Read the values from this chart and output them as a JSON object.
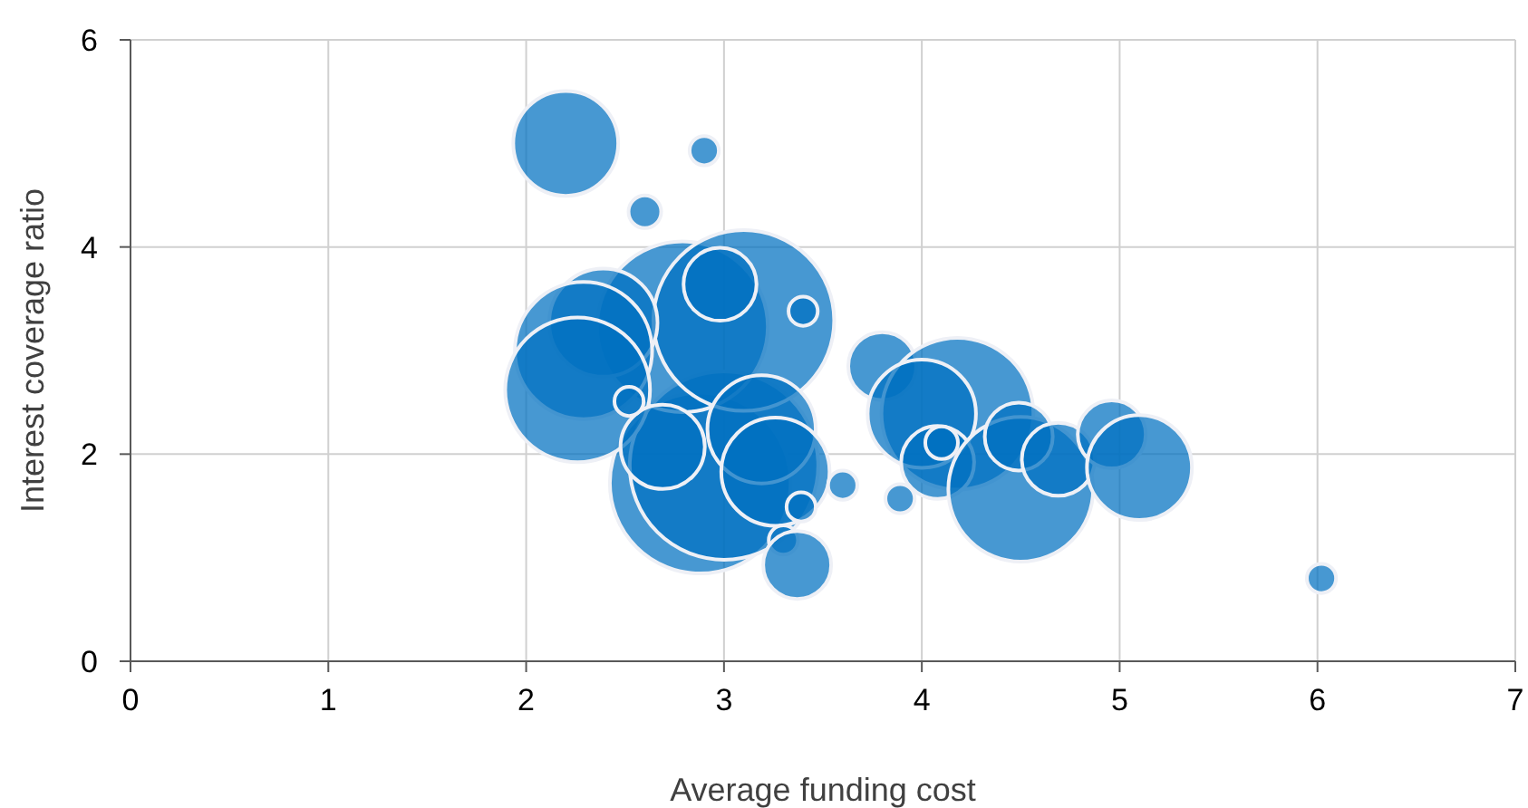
{
  "chart_data": {
    "type": "bubble",
    "xlabel": "Average funding cost",
    "ylabel": "Interest coverage ratio",
    "xlim": [
      0,
      7
    ],
    "xticks": [
      0,
      1,
      2,
      3,
      4,
      5,
      6,
      7
    ],
    "ylim": [
      0,
      6
    ],
    "yticks": [
      0,
      2,
      4,
      6
    ],
    "grid": true,
    "series": [
      {
        "color": "#0070c0",
        "x": [
          2.2,
          2.9,
          2.6,
          2.88,
          3.0,
          2.79,
          3.1,
          2.39,
          2.29,
          2.26,
          2.69,
          2.98,
          3.4,
          2.52,
          3.19,
          3.26,
          3.39,
          3.3,
          3.37,
          3.6,
          3.89,
          3.8,
          4.18,
          4.0,
          4.08,
          4.1,
          4.5,
          4.49,
          4.69,
          4.96,
          5.1,
          6.02
        ],
        "values": [
          5.0,
          4.93,
          4.34,
          1.72,
          1.89,
          3.23,
          3.29,
          3.27,
          3.0,
          2.62,
          2.07,
          3.64,
          3.38,
          2.51,
          2.24,
          1.83,
          1.49,
          1.17,
          0.93,
          1.7,
          1.57,
          2.85,
          2.39,
          2.39,
          1.92,
          2.11,
          1.66,
          2.17,
          1.95,
          2.19,
          1.87,
          0.8
        ],
        "sizes": [
          0.31,
          0.024,
          0.03,
          0.92,
          1,
          0.82,
          0.92,
          0.33,
          0.53,
          0.59,
          0.2,
          0.15,
          0.024,
          0.024,
          0.33,
          0.33,
          0.024,
          0.024,
          0.13,
          0.024,
          0.024,
          0.13,
          0.65,
          0.33,
          0.15,
          0.03,
          0.59,
          0.13,
          0.15,
          0.13,
          0.31,
          0.024
        ]
      }
    ]
  }
}
